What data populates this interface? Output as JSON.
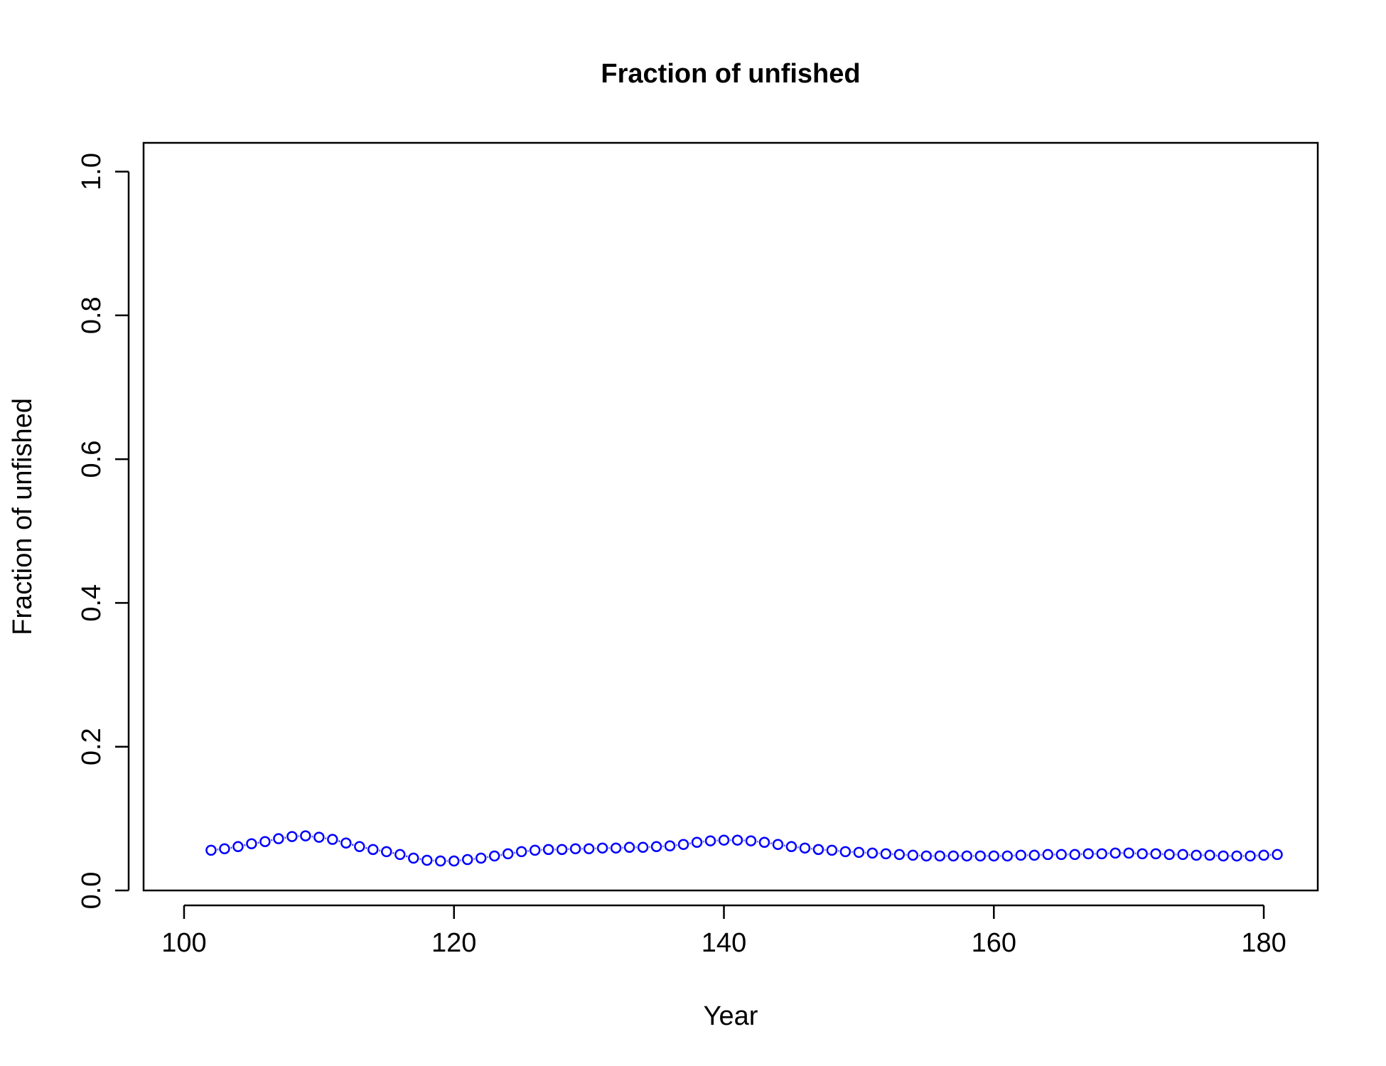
{
  "chart_data": {
    "type": "line",
    "title": "Fraction of unfished",
    "xlabel": "Year",
    "ylabel": "Fraction of unfished",
    "xlim": [
      97,
      184
    ],
    "ylim": [
      0,
      1.04
    ],
    "xticks": [
      "100",
      "120",
      "140",
      "160",
      "180"
    ],
    "xtick_values": [
      100,
      120,
      140,
      160,
      180
    ],
    "yticks": [
      "0.0",
      "0.2",
      "0.4",
      "0.6",
      "0.8",
      "1.0"
    ],
    "ytick_values": [
      0,
      0.2,
      0.4,
      0.6,
      0.8,
      1.0
    ],
    "grid": false,
    "legend": "none",
    "series": [
      {
        "color": "#0000FF",
        "marker": "open-circle",
        "x": [
          102,
          103,
          104,
          105,
          106,
          107,
          108,
          109,
          110,
          111,
          112,
          113,
          114,
          115,
          116,
          117,
          118,
          119,
          120,
          121,
          122,
          123,
          124,
          125,
          126,
          127,
          128,
          129,
          130,
          131,
          132,
          133,
          134,
          135,
          136,
          137,
          138,
          139,
          140,
          141,
          142,
          143,
          144,
          145,
          146,
          147,
          148,
          149,
          150,
          151,
          152,
          153,
          154,
          155,
          156,
          157,
          158,
          159,
          160,
          161,
          162,
          163,
          164,
          165,
          166,
          167,
          168,
          169,
          170,
          171,
          172,
          173,
          174,
          175,
          176,
          177,
          178,
          179,
          180,
          181
        ],
        "y": [
          0.056,
          0.058,
          0.061,
          0.065,
          0.068,
          0.072,
          0.075,
          0.076,
          0.074,
          0.071,
          0.066,
          0.061,
          0.057,
          0.054,
          0.05,
          0.045,
          0.042,
          0.041,
          0.041,
          0.043,
          0.045,
          0.048,
          0.051,
          0.054,
          0.056,
          0.057,
          0.057,
          0.058,
          0.058,
          0.059,
          0.059,
          0.06,
          0.06,
          0.061,
          0.062,
          0.064,
          0.067,
          0.069,
          0.07,
          0.07,
          0.069,
          0.067,
          0.064,
          0.061,
          0.059,
          0.057,
          0.056,
          0.054,
          0.053,
          0.052,
          0.051,
          0.05,
          0.049,
          0.048,
          0.048,
          0.048,
          0.048,
          0.048,
          0.048,
          0.048,
          0.049,
          0.049,
          0.05,
          0.05,
          0.05,
          0.051,
          0.051,
          0.052,
          0.052,
          0.051,
          0.051,
          0.05,
          0.05,
          0.049,
          0.049,
          0.048,
          0.048,
          0.048,
          0.049,
          0.05
        ]
      }
    ]
  }
}
